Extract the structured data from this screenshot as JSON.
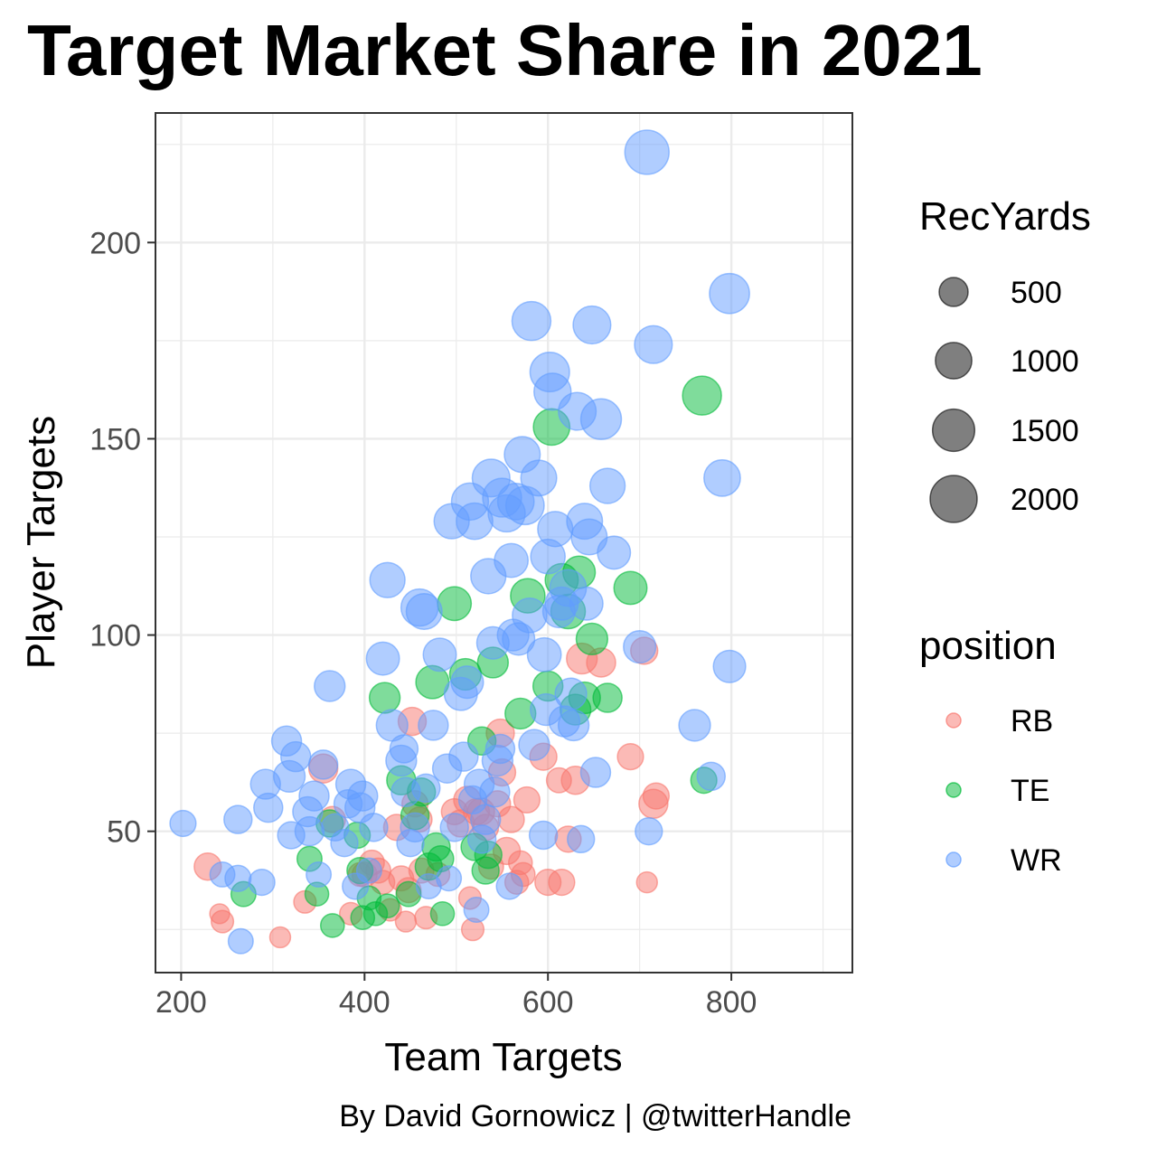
{
  "chart_data": {
    "type": "scatter",
    "title": "Target Market Share in 2021",
    "xlabel": "Team Targets",
    "ylabel": "Player Targets",
    "caption": "By David Gornowicz | @twitterHandle",
    "xlim": [
      172,
      932
    ],
    "ylim": [
      14,
      233
    ],
    "x_ticks": [
      200,
      400,
      600,
      800
    ],
    "y_ticks": [
      50,
      100,
      150,
      200
    ],
    "grid": true,
    "legend_position": "right",
    "size_legend": {
      "title": "RecYards",
      "values": [
        500,
        1000,
        1500,
        2000
      ],
      "labels": [
        "500",
        "1000",
        "1500",
        "2000"
      ]
    },
    "color_legend": {
      "title": "position",
      "entries": [
        {
          "label": "RB",
          "color": "#f8766d"
        },
        {
          "label": "TE",
          "color": "#00ba38"
        },
        {
          "label": "WR",
          "color": "#619cff"
        }
      ]
    },
    "series": [
      {
        "name": "RB",
        "color": "#f8766d",
        "points": [
          [
            229,
            41,
            400
          ],
          [
            242,
            29,
            120
          ],
          [
            245,
            27,
            200
          ],
          [
            308,
            23,
            150
          ],
          [
            335,
            32,
            200
          ],
          [
            355,
            66,
            500
          ],
          [
            365,
            53,
            350
          ],
          [
            385,
            29,
            200
          ],
          [
            395,
            39,
            250
          ],
          [
            400,
            39,
            300
          ],
          [
            408,
            42,
            300
          ],
          [
            415,
            40,
            300
          ],
          [
            420,
            37,
            250
          ],
          [
            428,
            30,
            200
          ],
          [
            435,
            51,
            350
          ],
          [
            440,
            38,
            300
          ],
          [
            445,
            27,
            150
          ],
          [
            448,
            35,
            300
          ],
          [
            452,
            78,
            450
          ],
          [
            455,
            57,
            350
          ],
          [
            460,
            53,
            300
          ],
          [
            462,
            40,
            300
          ],
          [
            467,
            28,
            200
          ],
          [
            480,
            39,
            250
          ],
          [
            498,
            55,
            350
          ],
          [
            505,
            52,
            400
          ],
          [
            512,
            58,
            400
          ],
          [
            515,
            33,
            200
          ],
          [
            518,
            25,
            200
          ],
          [
            522,
            55,
            350
          ],
          [
            527,
            55,
            400
          ],
          [
            532,
            51,
            350
          ],
          [
            538,
            41,
            300
          ],
          [
            545,
            57,
            350
          ],
          [
            548,
            75,
            450
          ],
          [
            550,
            65,
            400
          ],
          [
            555,
            45,
            400
          ],
          [
            560,
            53,
            350
          ],
          [
            566,
            37,
            250
          ],
          [
            570,
            42,
            250
          ],
          [
            573,
            39,
            250
          ],
          [
            577,
            58,
            350
          ],
          [
            595,
            69,
            400
          ],
          [
            600,
            37,
            350
          ],
          [
            612,
            63,
            300
          ],
          [
            615,
            37,
            350
          ],
          [
            622,
            48,
            350
          ],
          [
            630,
            63,
            450
          ],
          [
            637,
            94,
            600
          ],
          [
            658,
            93,
            500
          ],
          [
            690,
            69,
            350
          ],
          [
            705,
            96,
            400
          ],
          [
            708,
            37,
            150
          ],
          [
            715,
            57,
            500
          ],
          [
            718,
            59,
            350
          ]
        ]
      },
      {
        "name": "TE",
        "color": "#00ba38",
        "points": [
          [
            268,
            34,
            300
          ],
          [
            340,
            43,
            300
          ],
          [
            348,
            34,
            250
          ],
          [
            362,
            52,
            400
          ],
          [
            365,
            26,
            250
          ],
          [
            392,
            49,
            350
          ],
          [
            395,
            40,
            350
          ],
          [
            398,
            28,
            250
          ],
          [
            405,
            33,
            250
          ],
          [
            412,
            29,
            250
          ],
          [
            422,
            84,
            600
          ],
          [
            425,
            31,
            250
          ],
          [
            440,
            63,
            500
          ],
          [
            448,
            34,
            300
          ],
          [
            455,
            54,
            450
          ],
          [
            462,
            60,
            450
          ],
          [
            470,
            41,
            400
          ],
          [
            474,
            88,
            750
          ],
          [
            478,
            46,
            450
          ],
          [
            483,
            43,
            350
          ],
          [
            485,
            29,
            250
          ],
          [
            498,
            108,
            800
          ],
          [
            510,
            90,
            650
          ],
          [
            520,
            46,
            400
          ],
          [
            528,
            73,
            450
          ],
          [
            532,
            40,
            400
          ],
          [
            535,
            44,
            400
          ],
          [
            540,
            93,
            600
          ],
          [
            570,
            80,
            600
          ],
          [
            578,
            110,
            850
          ],
          [
            600,
            87,
            550
          ],
          [
            604,
            153,
            1000
          ],
          [
            615,
            114,
            750
          ],
          [
            622,
            106,
            850
          ],
          [
            630,
            81,
            600
          ],
          [
            634,
            116,
            700
          ],
          [
            640,
            84,
            650
          ],
          [
            648,
            99,
            650
          ],
          [
            665,
            84,
            500
          ],
          [
            690,
            112,
            750
          ],
          [
            768,
            161,
            1200
          ],
          [
            770,
            63,
            350
          ]
        ]
      },
      {
        "name": "WR",
        "color": "#619cff",
        "points": [
          [
            202,
            52,
            350
          ],
          [
            245,
            39,
            300
          ],
          [
            262,
            53,
            450
          ],
          [
            262,
            38,
            350
          ],
          [
            265,
            22,
            300
          ],
          [
            288,
            37,
            350
          ],
          [
            292,
            62,
            550
          ],
          [
            295,
            56,
            500
          ],
          [
            315,
            73,
            550
          ],
          [
            318,
            64,
            650
          ],
          [
            320,
            49,
            400
          ],
          [
            325,
            69,
            550
          ],
          [
            338,
            55,
            550
          ],
          [
            340,
            50,
            500
          ],
          [
            345,
            59,
            550
          ],
          [
            350,
            39,
            300
          ],
          [
            355,
            67,
            500
          ],
          [
            362,
            87,
            600
          ],
          [
            368,
            51,
            400
          ],
          [
            378,
            47,
            400
          ],
          [
            382,
            57,
            450
          ],
          [
            385,
            62,
            550
          ],
          [
            390,
            36,
            350
          ],
          [
            395,
            56,
            550
          ],
          [
            398,
            59,
            550
          ],
          [
            405,
            40,
            300
          ],
          [
            410,
            51,
            450
          ],
          [
            420,
            94,
            750
          ],
          [
            425,
            114,
            900
          ],
          [
            430,
            77,
            650
          ],
          [
            440,
            68,
            600
          ],
          [
            443,
            71,
            450
          ],
          [
            445,
            60,
            500
          ],
          [
            450,
            47,
            400
          ],
          [
            455,
            51,
            500
          ],
          [
            460,
            107,
            1050
          ],
          [
            465,
            106,
            950
          ],
          [
            467,
            61,
            450
          ],
          [
            470,
            36,
            300
          ],
          [
            475,
            77,
            550
          ],
          [
            482,
            95,
            750
          ],
          [
            490,
            66,
            500
          ],
          [
            492,
            38,
            300
          ],
          [
            495,
            129,
            900
          ],
          [
            498,
            51,
            450
          ],
          [
            505,
            85,
            750
          ],
          [
            508,
            69,
            500
          ],
          [
            512,
            88,
            700
          ],
          [
            515,
            134,
            1050
          ],
          [
            518,
            58,
            450
          ],
          [
            520,
            129,
            1000
          ],
          [
            522,
            30,
            300
          ],
          [
            525,
            62,
            550
          ],
          [
            528,
            48,
            450
          ],
          [
            532,
            53,
            550
          ],
          [
            535,
            115,
            900
          ],
          [
            538,
            140,
            1100
          ],
          [
            540,
            98,
            700
          ],
          [
            542,
            60,
            550
          ],
          [
            545,
            68,
            600
          ],
          [
            548,
            71,
            500
          ],
          [
            550,
            135,
            1200
          ],
          [
            555,
            131,
            1050
          ],
          [
            558,
            36,
            350
          ],
          [
            560,
            119,
            800
          ],
          [
            562,
            100,
            650
          ],
          [
            565,
            134,
            1000
          ],
          [
            568,
            99,
            700
          ],
          [
            572,
            146,
            950
          ],
          [
            575,
            133,
            1150
          ],
          [
            580,
            105,
            850
          ],
          [
            582,
            180,
            1200
          ],
          [
            585,
            72,
            600
          ],
          [
            590,
            140,
            950
          ],
          [
            595,
            49,
            450
          ],
          [
            596,
            95,
            800
          ],
          [
            598,
            81,
            650
          ],
          [
            600,
            120,
            850
          ],
          [
            602,
            167,
            1250
          ],
          [
            605,
            162,
            1050
          ],
          [
            608,
            127,
            900
          ],
          [
            612,
            106,
            700
          ],
          [
            615,
            108,
            750
          ],
          [
            618,
            78,
            600
          ],
          [
            622,
            112,
            1000
          ],
          [
            625,
            85,
            650
          ],
          [
            628,
            77,
            600
          ],
          [
            632,
            157,
            1100
          ],
          [
            636,
            48,
            400
          ],
          [
            640,
            129,
            950
          ],
          [
            642,
            108,
            750
          ],
          [
            645,
            125,
            950
          ],
          [
            648,
            179,
            1100
          ],
          [
            652,
            65,
            550
          ],
          [
            658,
            155,
            1350
          ],
          [
            665,
            138,
            900
          ],
          [
            672,
            121,
            750
          ],
          [
            700,
            97,
            700
          ],
          [
            708,
            223,
            1700
          ],
          [
            710,
            50,
            400
          ],
          [
            715,
            174,
            1100
          ],
          [
            760,
            77,
            650
          ],
          [
            778,
            64,
            450
          ],
          [
            790,
            140,
            1000
          ],
          [
            798,
            187,
            1300
          ],
          [
            798,
            92,
            700
          ]
        ]
      }
    ]
  }
}
